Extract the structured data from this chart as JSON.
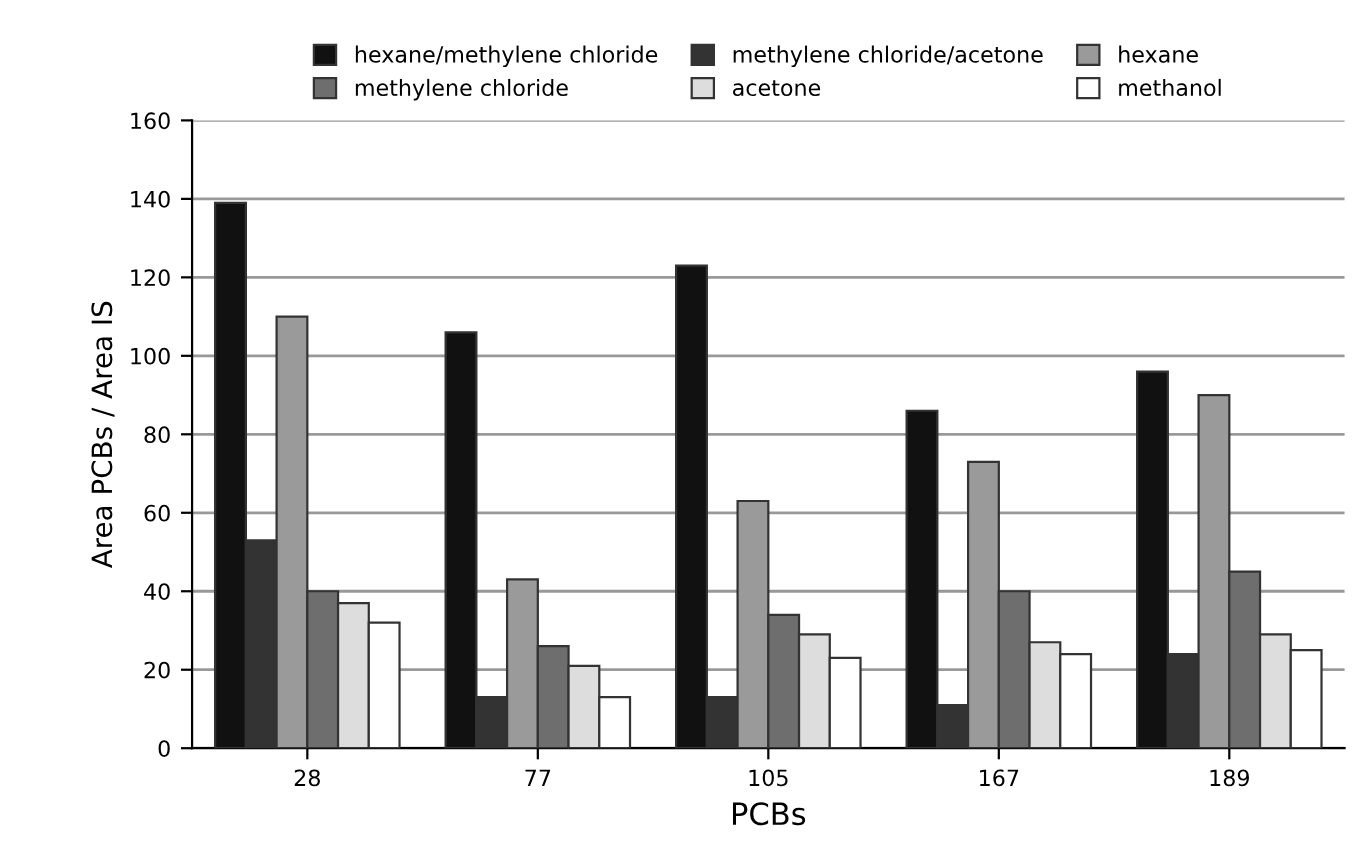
{
  "chart_data": {
    "type": "bar",
    "xlabel": "PCBs",
    "ylabel": "Area PCBs / Area IS",
    "categories": [
      "28",
      "77",
      "105",
      "167",
      "189"
    ],
    "series": [
      {
        "name": "hexane/methylene chloride",
        "color": "#111111",
        "values": [
          139,
          106,
          123,
          86,
          96
        ]
      },
      {
        "name": "methylene chloride/acetone",
        "color": "#333333",
        "values": [
          53,
          13,
          13,
          11,
          24
        ]
      },
      {
        "name": "hexane",
        "color": "#9a9a9a",
        "values": [
          110,
          43,
          63,
          73,
          90
        ]
      },
      {
        "name": "methylene chloride",
        "color": "#6e6e6e",
        "values": [
          40,
          26,
          34,
          40,
          45
        ]
      },
      {
        "name": "acetone",
        "color": "#dddddd",
        "values": [
          37,
          21,
          29,
          27,
          29
        ]
      },
      {
        "name": "methanol",
        "color": "#ffffff",
        "values": [
          32,
          13,
          23,
          24,
          25
        ]
      }
    ],
    "ylim": [
      0,
      160
    ],
    "yticks": [
      0,
      20,
      40,
      60,
      80,
      100,
      120,
      140,
      160
    ],
    "grid": "y",
    "legend": "top"
  }
}
